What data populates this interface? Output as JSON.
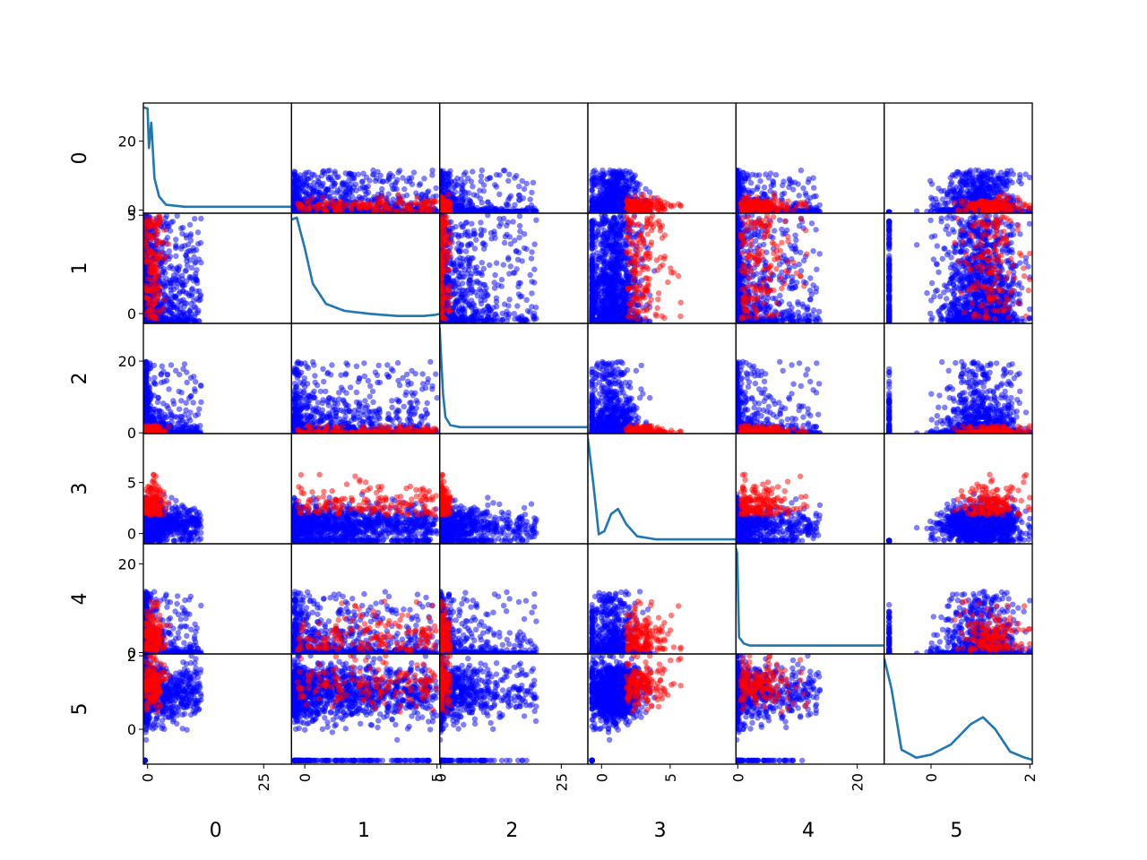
{
  "chart_data": {
    "type": "scatter-matrix",
    "variables": [
      "0",
      "1",
      "2",
      "3",
      "4",
      "5"
    ],
    "diagonal": "kde",
    "series": [
      {
        "name": "",
        "color": "#0000ff"
      },
      {
        "name": "",
        "color": "#ff0000"
      }
    ],
    "kde_color": "#1f77b4",
    "axes": [
      {
        "label": "0",
        "range": [
          -0.9,
          31
        ],
        "ticks": [
          0,
          20
        ],
        "xticks": [
          0,
          25
        ]
      },
      {
        "label": "1",
        "range": [
          -0.5,
          5.1
        ],
        "ticks": [
          0,
          5
        ],
        "xticks": [
          0,
          5
        ]
      },
      {
        "label": "2",
        "range": [
          -0.2,
          30.5
        ],
        "ticks": [
          0,
          20
        ],
        "xticks": [
          0,
          25
        ]
      },
      {
        "label": "3",
        "range": [
          -1.0,
          9.8
        ],
        "ticks": [
          0,
          5
        ],
        "xticks": [
          0,
          5
        ]
      },
      {
        "label": "4",
        "range": [
          -0.3,
          24.5
        ],
        "ticks": [
          0,
          20
        ],
        "xticks": [
          0,
          20
        ]
      },
      {
        "label": "5",
        "range": [
          -0.95,
          2.05
        ],
        "ticks": [
          0,
          2
        ],
        "xticks": [
          0,
          2
        ]
      }
    ],
    "kde_curves": [
      {
        "var": "0",
        "x": [
          -0.9,
          0,
          0.3,
          0.8,
          1.5,
          2.5,
          4,
          8,
          31
        ],
        "y": [
          1,
          0.99,
          0.6,
          0.85,
          0.3,
          0.12,
          0.04,
          0.02,
          0.02
        ]
      },
      {
        "var": "1",
        "x": [
          -0.5,
          -0.3,
          0,
          0.3,
          0.8,
          1.5,
          2.5,
          3.5,
          4.5,
          4.9,
          5.1
        ],
        "y": [
          0.98,
          1.0,
          0.7,
          0.35,
          0.15,
          0.08,
          0.05,
          0.03,
          0.03,
          0.04,
          0.05
        ]
      },
      {
        "var": "2",
        "x": [
          -0.2,
          0,
          0.5,
          1,
          2,
          4,
          8,
          30.5
        ],
        "y": [
          1.0,
          0.8,
          0.35,
          0.12,
          0.04,
          0.02,
          0.02,
          0.02
        ]
      },
      {
        "var": "3",
        "x": [
          -1.0,
          -0.6,
          -0.2,
          0.2,
          0.7,
          1.2,
          1.8,
          2.6,
          4,
          9.8
        ],
        "y": [
          1.0,
          0.55,
          0.05,
          0.08,
          0.25,
          0.3,
          0.15,
          0.03,
          0.0,
          0.0
        ]
      },
      {
        "var": "4",
        "x": [
          -0.3,
          -0.1,
          0.2,
          0.5,
          1,
          2,
          4,
          24.5
        ],
        "y": [
          1.0,
          0.95,
          0.12,
          0.1,
          0.06,
          0.04,
          0.04,
          0.04
        ]
      },
      {
        "var": "5",
        "x": [
          -0.95,
          -0.8,
          -0.6,
          -0.3,
          0,
          0.4,
          0.8,
          1.05,
          1.3,
          1.6,
          1.9,
          2.05
        ],
        "y": [
          1.0,
          0.7,
          0.1,
          0.02,
          0.05,
          0.15,
          0.35,
          0.42,
          0.3,
          0.08,
          0.02,
          0.0
        ]
      }
    ]
  }
}
